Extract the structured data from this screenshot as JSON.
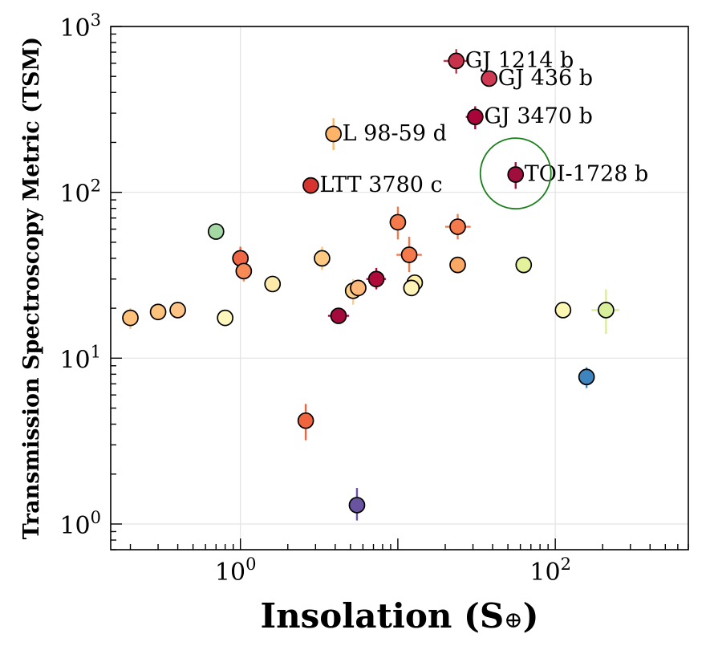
{
  "chart_data": {
    "type": "scatter",
    "xlabel": "Insolation (S",
    "xlabel_symbol": "⊕",
    "xlabel_close": ")",
    "ylabel": "Transmission Spectroscopy Metric (TSM)",
    "xscale": "log",
    "yscale": "log",
    "xlim": [
      0.15,
      700
    ],
    "ylim": [
      0.7,
      1000
    ],
    "grid": true,
    "x_ticks": [
      {
        "value": 1,
        "base": "10",
        "exp": "0"
      },
      {
        "value": 100,
        "base": "10",
        "exp": "2"
      }
    ],
    "y_ticks": [
      {
        "value": 1,
        "base": "10",
        "exp": "0"
      },
      {
        "value": 10,
        "base": "10",
        "exp": "1"
      },
      {
        "value": 100,
        "base": "10",
        "exp": "2"
      },
      {
        "value": 1000,
        "base": "10",
        "exp": "3"
      }
    ],
    "highlight": {
      "x": 56,
      "y": 130,
      "color": "#1a7f1a"
    },
    "points": [
      {
        "x": 23.5,
        "y": 620,
        "color": "#c8324a",
        "xerr": [
          19.5,
          28
        ],
        "yerr": [
          520,
          730
        ],
        "label": "GJ 1214 b"
      },
      {
        "x": 38,
        "y": 485,
        "color": "#cf3a52"
      },
      {
        "x": 31,
        "y": 285,
        "color": "#a8063a",
        "xerr": [
          27,
          35
        ],
        "yerr": [
          240,
          330
        ],
        "label": "GJ 3470 b"
      },
      {
        "x": 3.9,
        "y": 225,
        "color": "#fdb468",
        "yerr": [
          180,
          280
        ],
        "label": "L 98-59 d"
      },
      {
        "x": 56,
        "y": 128,
        "color": "#a00e3e",
        "yerr": [
          105,
          152
        ],
        "label": "TOI-1728 b"
      },
      {
        "x": 2.8,
        "y": 110,
        "color": "#d7342f",
        "label": "LTT 3780 c"
      },
      {
        "x": 0.7,
        "y": 58,
        "color": "#a4d8a4"
      },
      {
        "x": 10,
        "y": 66,
        "color": "#f47a4c",
        "yerr": [
          52,
          82
        ]
      },
      {
        "x": 24,
        "y": 62,
        "color": "#f47a4c",
        "xerr": [
          20,
          29
        ],
        "yerr": [
          52,
          74
        ]
      },
      {
        "x": 11.8,
        "y": 42,
        "color": "#f47a4c",
        "xerr": [
          9.8,
          14.2
        ],
        "yerr": [
          33,
          54
        ]
      },
      {
        "x": 1.0,
        "y": 40,
        "color": "#ef6644",
        "yerr": [
          34,
          47
        ]
      },
      {
        "x": 3.3,
        "y": 40,
        "color": "#fdc880",
        "yerr": [
          34,
          47
        ]
      },
      {
        "x": 1.05,
        "y": 33.5,
        "color": "#f88a55",
        "yerr": [
          29,
          38
        ]
      },
      {
        "x": 24,
        "y": 36.5,
        "color": "#fba865"
      },
      {
        "x": 63,
        "y": 36.5,
        "color": "#e4f29c"
      },
      {
        "x": 7.3,
        "y": 30,
        "color": "#b00a3a",
        "xerr": [
          6.3,
          8.4
        ],
        "yerr": [
          26,
          35
        ]
      },
      {
        "x": 1.6,
        "y": 28,
        "color": "#feebaa"
      },
      {
        "x": 12.8,
        "y": 28.5,
        "color": "#feeea8"
      },
      {
        "x": 12.2,
        "y": 26.5,
        "color": "#fff3b8"
      },
      {
        "x": 5.2,
        "y": 25.5,
        "color": "#fdd08a",
        "yerr": [
          21,
          30
        ]
      },
      {
        "x": 5.6,
        "y": 26.5,
        "color": "#fdb87a"
      },
      {
        "x": 0.2,
        "y": 17.5,
        "color": "#fec27a",
        "yerr": [
          15,
          20
        ]
      },
      {
        "x": 0.3,
        "y": 19,
        "color": "#fdc27c"
      },
      {
        "x": 0.4,
        "y": 19.5,
        "color": "#fdc485"
      },
      {
        "x": 0.8,
        "y": 17.5,
        "color": "#fff7bc"
      },
      {
        "x": 4.2,
        "y": 18,
        "color": "#a50a3c",
        "xerr": [
          3.6,
          4.9
        ]
      },
      {
        "x": 112,
        "y": 19.5,
        "color": "#fef7b4"
      },
      {
        "x": 210,
        "y": 19.5,
        "color": "#d9ee9a",
        "xerr": [
          170,
          255
        ],
        "yerr": [
          14,
          26
        ]
      },
      {
        "x": 158,
        "y": 7.7,
        "color": "#3e85bf",
        "yerr": [
          6.6,
          8.8
        ]
      },
      {
        "x": 2.6,
        "y": 4.2,
        "color": "#f0643f",
        "yerr": [
          3.2,
          5.3
        ]
      },
      {
        "x": 5.5,
        "y": 1.3,
        "color": "#6a54a2",
        "yerr": [
          1.05,
          1.65
        ]
      }
    ]
  }
}
